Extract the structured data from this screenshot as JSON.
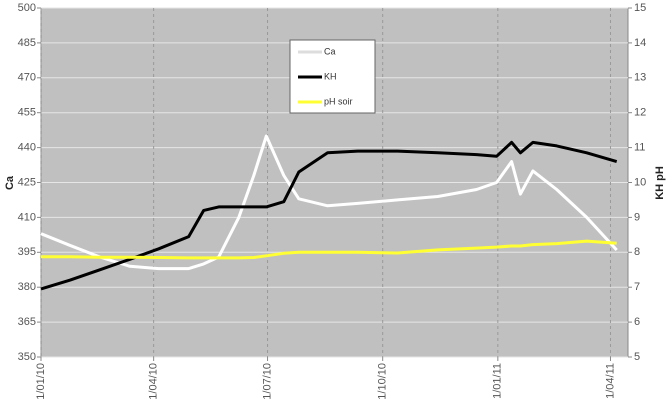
{
  "chart_data": {
    "type": "line",
    "y_label": "Ca",
    "y2_label": "KH pH",
    "x": [
      "1/01/10",
      "24/01/10",
      "17/02/10",
      "13/03/10",
      "5/04/10",
      "29/04/10",
      "11/05/10",
      "23/05/10",
      "8/06/10",
      "20/06/10",
      "30/06/10",
      "14/07/10",
      "26/07/10",
      "18/08/10",
      "11/09/10",
      "13/10/10",
      "14/11/10",
      "15/12/10",
      "31/12/10",
      "12/01/11",
      "19/01/11",
      "29/01/11",
      "17/02/11",
      "13/03/11",
      "6/04/11"
    ],
    "xlim": [
      "1/01/10",
      "15/04/11"
    ],
    "xticks": [
      "1/01/10",
      "1/04/10",
      "1/07/10",
      "1/10/10",
      "1/01/11",
      "1/04/11"
    ],
    "ylim": [
      350,
      500
    ],
    "yticks": [
      350,
      365,
      380,
      395,
      410,
      425,
      440,
      455,
      470,
      485,
      500
    ],
    "y2lim": [
      5,
      15
    ],
    "y2ticks": [
      5,
      6,
      7,
      8,
      9,
      10,
      11,
      12,
      13,
      14,
      15
    ],
    "grid": true,
    "background": "#c0c0c0",
    "legend": "top",
    "series": [
      {
        "name": "Ca",
        "color": "#ffffff",
        "values": [
          403,
          398,
          393,
          389,
          388,
          388,
          390,
          393,
          410,
          428,
          445,
          428,
          418,
          415,
          416,
          417.5,
          419,
          422,
          425,
          434,
          420,
          430,
          422,
          410,
          396
        ]
      },
      {
        "name": "KH",
        "color": "#000000",
        "axis": "y2",
        "values": [
          6.95,
          7.2,
          7.5,
          7.8,
          8.1,
          8.45,
          9.2,
          9.3,
          9.3,
          9.3,
          9.3,
          9.45,
          10.3,
          10.85,
          10.9,
          10.9,
          10.85,
          10.8,
          10.75,
          11.15,
          10.85,
          11.15,
          11.05,
          10.85,
          10.6
        ]
      },
      {
        "name": "pH soir",
        "color": "#ffff33",
        "axis": "y2",
        "values": [
          7.87,
          7.87,
          7.86,
          7.86,
          7.85,
          7.84,
          7.84,
          7.84,
          7.84,
          7.85,
          7.9,
          7.97,
          8.0,
          8.0,
          8.0,
          7.98,
          8.07,
          8.12,
          8.15,
          8.18,
          8.18,
          8.22,
          8.25,
          8.32,
          8.26
        ]
      }
    ]
  }
}
